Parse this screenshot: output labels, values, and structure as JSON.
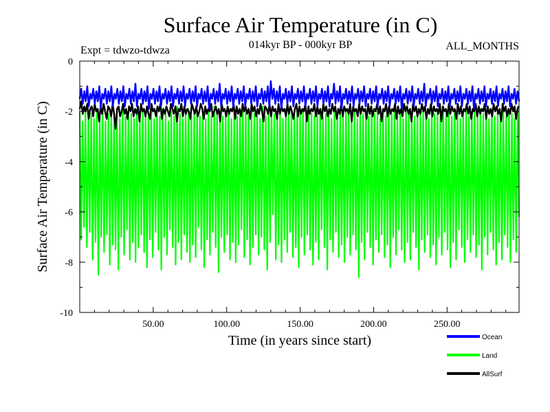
{
  "chart_data": {
    "type": "line",
    "title": "Surface Air Temperature (in C)",
    "subtitle": "014kyr BP - 000kyr BP",
    "expt_label": "Expt = tdwzo-tdwza",
    "months_label": "ALL_MONTHS",
    "xlabel": "Time (in years since start)",
    "ylabel": "Surface Air Temperature (in C)",
    "xlim": [
      0,
      299
    ],
    "ylim": [
      -10,
      0
    ],
    "x_ticks": [
      50,
      100,
      150,
      200,
      250
    ],
    "x_tick_labels": [
      "50.00",
      "100.00",
      "150.00",
      "200.00",
      "250.00"
    ],
    "y_ticks": [
      0,
      -2,
      -4,
      -6,
      -8,
      -10
    ],
    "y_tick_labels": [
      "0",
      "-2",
      "-4",
      "-6",
      "-8",
      "-10"
    ],
    "grid": false,
    "legend_position": "bottom-right",
    "series": [
      {
        "name": "Land",
        "color": "#00ff00",
        "values": [
          -2.0,
          -7.1,
          -2.4,
          -6.6,
          -1.9,
          -7.4,
          -2.2,
          -6.8,
          -2.1,
          -7.9,
          -2.3,
          -7.2,
          -2.0,
          -8.5,
          -2.2,
          -7.0,
          -1.9,
          -7.6,
          -2.4,
          -6.9,
          -2.1,
          -8.1,
          -2.0,
          -7.3,
          -2.2,
          -7.5,
          -2.1,
          -8.3,
          -2.3,
          -7.0,
          -1.8,
          -7.7,
          -2.2,
          -6.7,
          -2.0,
          -7.9,
          -2.1,
          -7.2,
          -2.3,
          -8.0,
          -1.9,
          -7.4,
          -2.2,
          -6.9,
          -2.0,
          -7.6,
          -2.1,
          -8.2,
          -2.2,
          -7.1,
          -1.9,
          -7.8,
          -2.3,
          -6.8,
          -2.0,
          -7.5,
          -2.2,
          -8.3,
          -1.9,
          -7.0,
          -2.1,
          -7.7,
          -2.4,
          -6.7,
          -2.0,
          -7.4,
          -2.2,
          -8.1,
          -1.8,
          -7.2,
          -2.1,
          -7.9,
          -2.3,
          -6.9,
          -2.0,
          -7.6,
          -1.9,
          -8.0,
          -2.2,
          -7.3,
          -2.0,
          -7.8,
          -2.1,
          -6.6,
          -2.2,
          -7.5,
          -1.9,
          -8.2,
          -2.3,
          -7.1,
          -2.0,
          -7.7,
          -2.2,
          -6.8,
          -1.8,
          -7.4,
          -2.1,
          -8.4,
          -2.0,
          -7.0,
          -2.2,
          -7.6,
          -2.1,
          -6.9,
          -1.9,
          -7.9,
          -2.3,
          -7.2,
          -2.0,
          -8.0,
          -2.2,
          -7.3,
          -2.1,
          -6.7,
          -1.7,
          -7.8,
          -2.0,
          -7.1,
          -2.2,
          -8.1,
          -1.9,
          -7.4,
          -2.1,
          -6.9,
          -2.0,
          -7.7,
          -2.3,
          -7.0,
          -1.8,
          -7.5,
          -2.2,
          -8.3,
          -2.0,
          -7.2,
          -1.9,
          -6.1,
          -2.1,
          -7.9,
          -2.2,
          -7.3,
          -2.0,
          -8.0,
          -2.3,
          -7.1,
          -1.9,
          -7.6,
          -2.1,
          -6.8,
          -2.0,
          -7.8,
          -2.2,
          -7.4,
          -1.9,
          -8.2,
          -2.1,
          -7.0,
          -2.0,
          -7.7,
          -2.3,
          -6.9,
          -1.8,
          -7.5,
          -2.1,
          -8.1,
          -2.2,
          -7.2,
          -2.0,
          -7.9,
          -1.9,
          -6.7,
          -2.2,
          -7.4,
          -2.1,
          -8.3,
          -2.0,
          -7.1,
          -2.3,
          -7.6,
          -1.9,
          -6.8,
          -2.1,
          -7.8,
          -2.0,
          -7.3,
          -2.2,
          -8.0,
          -1.9,
          -7.0,
          -2.1,
          -7.7,
          -2.2,
          -6.9,
          -2.0,
          -7.5,
          -2.3,
          -8.6,
          -1.9,
          -7.2,
          -2.1,
          -7.9,
          -2.0,
          -6.8,
          -2.2,
          -7.4,
          -1.8,
          -8.1,
          -2.1,
          -7.1,
          -2.0,
          -7.6,
          -2.3,
          -6.9,
          -1.9,
          -7.8,
          -2.2,
          -7.3,
          -2.0,
          -8.2,
          -2.1,
          -7.0,
          -1.9,
          -7.7,
          -2.2,
          -6.7,
          -2.0,
          -7.5,
          -2.3,
          -8.0,
          -1.8,
          -7.2,
          -2.1,
          -7.9,
          -2.0,
          -6.8,
          -2.2,
          -7.4,
          -1.9,
          -8.3,
          -2.1,
          -7.1,
          -2.0,
          -7.6,
          -2.2,
          -6.9,
          -2.3,
          -7.8,
          -1.9,
          -7.3,
          -2.1,
          -8.1,
          -2.0,
          -7.0,
          -2.2,
          -7.7,
          -1.8,
          -6.8,
          -2.1,
          -7.5,
          -2.0,
          -8.2,
          -2.2,
          -7.2,
          -1.9,
          -7.9,
          -2.1,
          -6.7,
          -2.3,
          -7.4,
          -2.0,
          -8.0,
          -1.9,
          -7.1,
          -2.2,
          -7.6,
          -2.1,
          -6.9,
          -2.0,
          -7.8,
          -2.2,
          -7.3,
          -1.9,
          -8.3,
          -2.1,
          -7.0,
          -2.0,
          -7.7,
          -2.3,
          -6.8,
          -1.9,
          -7.5,
          -2.2,
          -8.1,
          -2.0,
          -7.2,
          -2.1,
          -7.9,
          -1.9,
          -6.9,
          -2.2,
          -7.4,
          -2.0,
          -8.0,
          -2.1,
          -7.1,
          -2.3,
          -7.6,
          -1.8,
          -6.2
        ]
      },
      {
        "name": "AllSurf",
        "color": "#000000",
        "values": [
          -1.9,
          -1.6,
          -2.1,
          -1.8,
          -2.0,
          -1.7,
          -2.3,
          -1.9,
          -1.8,
          -2.2,
          -1.7,
          -2.0,
          -1.9,
          -2.4,
          -1.8,
          -2.1,
          -1.7,
          -2.0,
          -2.3,
          -1.8,
          -1.9,
          -2.2,
          -1.7,
          -2.1,
          -2.7,
          -1.9,
          -1.8,
          -2.2,
          -2.0,
          -1.7,
          -2.1,
          -1.9,
          -2.3,
          -1.8,
          -2.0,
          -1.7,
          -2.2,
          -1.9,
          -2.1,
          -1.8,
          -2.4,
          -1.7,
          -2.0,
          -1.9,
          -2.2,
          -1.8,
          -2.1,
          -2.3,
          -1.7,
          -2.0,
          -1.9,
          -2.2,
          -1.8,
          -2.0,
          -1.7,
          -2.3,
          -1.9,
          -2.1,
          -1.8,
          -2.0,
          -2.2,
          -1.7,
          -1.9,
          -2.1,
          -1.8,
          -2.4,
          -1.9,
          -2.0,
          -1.7,
          -2.2,
          -1.8,
          -2.1,
          -1.9,
          -2.0,
          -2.3,
          -1.7,
          -1.9,
          -2.1,
          -1.8,
          -2.2,
          -2.0,
          -1.7,
          -1.9,
          -2.3,
          -1.8,
          -2.1,
          -1.9,
          -2.0,
          -1.7,
          -2.2,
          -2.0,
          -1.8,
          -2.1,
          -1.9,
          -2.4,
          -1.7,
          -2.0,
          -1.9,
          -2.2,
          -1.8,
          -2.1,
          -1.9,
          -2.0,
          -1.7,
          -2.3,
          -1.8,
          -2.1,
          -1.9,
          -2.2,
          -1.7,
          -2.0,
          -1.8,
          -2.1,
          -1.9,
          -2.3,
          -1.7,
          -2.0,
          -1.8,
          -2.2,
          -1.9,
          -2.1,
          -1.7,
          -2.0,
          -2.4,
          -1.8,
          -1.9,
          -2.1,
          -1.7,
          -2.2,
          -1.8,
          -2.0,
          -1.9,
          -2.3,
          -1.7,
          -2.1,
          -1.8,
          -2.0,
          -1.9,
          -2.2,
          -1.7,
          -2.1,
          -1.8,
          -2.0,
          -2.3,
          -1.9,
          -1.7,
          -2.2,
          -1.8,
          -2.1,
          -1.9,
          -2.0,
          -1.7,
          -2.4,
          -1.8,
          -2.1,
          -1.9,
          -2.0,
          -1.7,
          -2.2,
          -1.8,
          -2.1,
          -1.9,
          -2.3,
          -1.7,
          -2.0,
          -1.8,
          -2.2,
          -1.9,
          -2.1,
          -1.7,
          -2.0,
          -1.8,
          -2.3,
          -1.9,
          -2.1,
          -1.7,
          -2.2,
          -1.8,
          -2.0,
          -1.9,
          -2.1,
          -1.7,
          -2.4,
          -1.8,
          -2.0,
          -1.9,
          -2.2,
          -1.7,
          -2.1,
          -1.8,
          -2.0,
          -1.9,
          -2.3,
          -1.7,
          -2.1,
          -1.8,
          -2.2,
          -1.9,
          -2.0,
          -1.7,
          -2.1,
          -1.8,
          -2.4,
          -1.9,
          -2.0,
          -1.7,
          -2.2,
          -1.8,
          -2.1,
          -1.9,
          -2.0,
          -1.7,
          -2.3,
          -1.8,
          -2.1,
          -1.9,
          -2.2,
          -1.7,
          -2.0,
          -1.8,
          -2.1,
          -1.9,
          -2.4,
          -1.7,
          -2.0,
          -1.8,
          -2.2,
          -1.9,
          -2.1,
          -1.7,
          -2.0,
          -1.8,
          -2.3,
          -1.9,
          -2.1,
          -1.7,
          -2.2,
          -1.8,
          -2.0,
          -1.9,
          -2.1,
          -1.7,
          -2.4,
          -1.8,
          -2.0,
          -1.9,
          -2.2,
          -1.7,
          -2.1,
          -1.8,
          -2.0,
          -1.9,
          -2.3,
          -1.7,
          -2.1,
          -1.8,
          -2.2,
          -1.9,
          -2.0,
          -1.7,
          -2.1,
          -1.8,
          -2.3,
          -1.9,
          -2.0,
          -1.7,
          -2.2,
          -1.8,
          -2.1,
          -1.9,
          -2.0,
          -1.7,
          -2.3,
          -1.8,
          -2.1,
          -1.9,
          -2.2,
          -1.7,
          -2.0,
          -1.8,
          -2.1,
          -1.9,
          -2.4,
          -1.7,
          -2.0,
          -1.8,
          -2.2,
          -1.9,
          -2.1,
          -1.7,
          -2.0,
          -1.8,
          -2.3,
          -1.9,
          -1.8
        ]
      },
      {
        "name": "Ocean",
        "color": "#0000ff",
        "values": [
          -1.5,
          -1.1,
          -1.7,
          -1.2,
          -1.6,
          -1.0,
          -1.8,
          -1.3,
          -1.5,
          -1.1,
          -1.7,
          -1.2,
          -1.6,
          -1.0,
          -1.9,
          -1.3,
          -1.5,
          -1.1,
          -1.7,
          -1.2,
          -1.6,
          -1.0,
          -1.8,
          -1.3,
          -1.5,
          -1.1,
          -1.7,
          -1.2,
          -1.6,
          -1.0,
          -1.8,
          -1.3,
          -1.5,
          -1.1,
          -1.7,
          -1.2,
          -1.6,
          -0.9,
          -1.8,
          -1.3,
          -1.5,
          -1.1,
          -1.7,
          -1.2,
          -1.6,
          -1.0,
          -1.9,
          -1.3,
          -1.5,
          -1.1,
          -1.7,
          -1.2,
          -1.6,
          -1.0,
          -1.8,
          -1.3,
          -1.5,
          -1.1,
          -1.7,
          -1.2,
          -1.6,
          -1.0,
          -1.8,
          -1.3,
          -1.5,
          -1.1,
          -1.7,
          -1.2,
          -1.6,
          -1.0,
          -1.8,
          -1.3,
          -1.5,
          -1.1,
          -1.7,
          -1.2,
          -1.6,
          -1.0,
          -1.8,
          -1.3,
          -1.5,
          -1.1,
          -1.7,
          -1.2,
          -1.6,
          -1.0,
          -1.9,
          -1.3,
          -1.5,
          -1.1,
          -1.7,
          -1.2,
          -1.6,
          -0.9,
          -1.8,
          -1.3,
          -1.5,
          -1.1,
          -1.7,
          -1.2,
          -1.6,
          -1.0,
          -1.8,
          -1.3,
          -1.5,
          -1.1,
          -1.7,
          -1.2,
          -1.6,
          -1.0,
          -1.8,
          -1.3,
          -1.5,
          -1.1,
          -1.7,
          -1.2,
          -1.6,
          -1.0,
          -1.8,
          -1.3,
          -1.5,
          -1.1,
          -1.7,
          -1.2,
          -1.6,
          -1.0,
          -1.8,
          -0.8,
          -1.5,
          -1.1,
          -1.7,
          -1.2,
          -1.6,
          -1.0,
          -1.9,
          -1.3,
          -1.5,
          -1.1,
          -1.7,
          -1.2,
          -1.6,
          -1.0,
          -1.8,
          -1.3,
          -1.5,
          -1.1,
          -1.7,
          -1.2,
          -1.6,
          -1.0,
          -1.8,
          -1.3,
          -1.5,
          -1.1,
          -1.7,
          -1.2,
          -1.6,
          -1.0,
          -1.8,
          -1.3,
          -1.5,
          -1.1,
          -1.7,
          -1.2,
          -1.6,
          -1.0,
          -1.8,
          -1.3,
          -1.5,
          -0.9,
          -1.7,
          -1.2,
          -1.6,
          -1.0,
          -1.9,
          -1.3,
          -1.5,
          -1.1,
          -1.7,
          -1.2,
          -1.6,
          -1.0,
          -1.8,
          -1.3,
          -1.5,
          -1.1,
          -1.7,
          -1.2,
          -1.6,
          -1.0,
          -1.8,
          -1.3,
          -1.5,
          -1.1,
          -1.7,
          -1.2,
          -1.6,
          -1.0,
          -1.8,
          -1.3,
          -1.5,
          -1.1,
          -1.7,
          -1.2,
          -1.6,
          -1.0,
          -1.8,
          -1.3,
          -1.5,
          -1.1,
          -1.7,
          -1.2,
          -1.6,
          -1.0,
          -1.9,
          -1.3,
          -1.5,
          -1.1,
          -1.7,
          -1.2,
          -1.6,
          -1.0,
          -1.8,
          -1.3,
          -1.5,
          -1.1,
          -1.7,
          -1.2,
          -1.6,
          -0.9,
          -1.8,
          -1.3,
          -1.5,
          -1.1,
          -1.7,
          -1.2,
          -1.6,
          -1.0,
          -1.8,
          -1.3,
          -1.5,
          -1.1,
          -1.7,
          -1.2,
          -1.6,
          -1.0,
          -1.8,
          -1.3,
          -1.5,
          -1.1,
          -1.7,
          -1.2,
          -1.6,
          -1.0,
          -1.8,
          -1.3,
          -1.5,
          -1.1,
          -1.7,
          -1.2,
          -1.6,
          -1.0,
          -1.9,
          -1.3,
          -1.5,
          -1.1,
          -1.7,
          -1.2,
          -1.6,
          -1.0,
          -1.8,
          -1.3,
          -1.5,
          -1.1,
          -1.7,
          -1.2,
          -1.6,
          -1.0,
          -1.8,
          -1.3,
          -1.5,
          -1.1,
          -1.7,
          -1.2,
          -1.6,
          -1.0,
          -1.8,
          -1.3,
          -1.5,
          -1.1,
          -1.7,
          -1.2,
          -1.6
        ]
      }
    ],
    "legend": [
      {
        "name": "Ocean",
        "color": "#0000ff"
      },
      {
        "name": "Land",
        "color": "#00ff00"
      },
      {
        "name": "AllSurf",
        "color": "#000000"
      }
    ]
  }
}
